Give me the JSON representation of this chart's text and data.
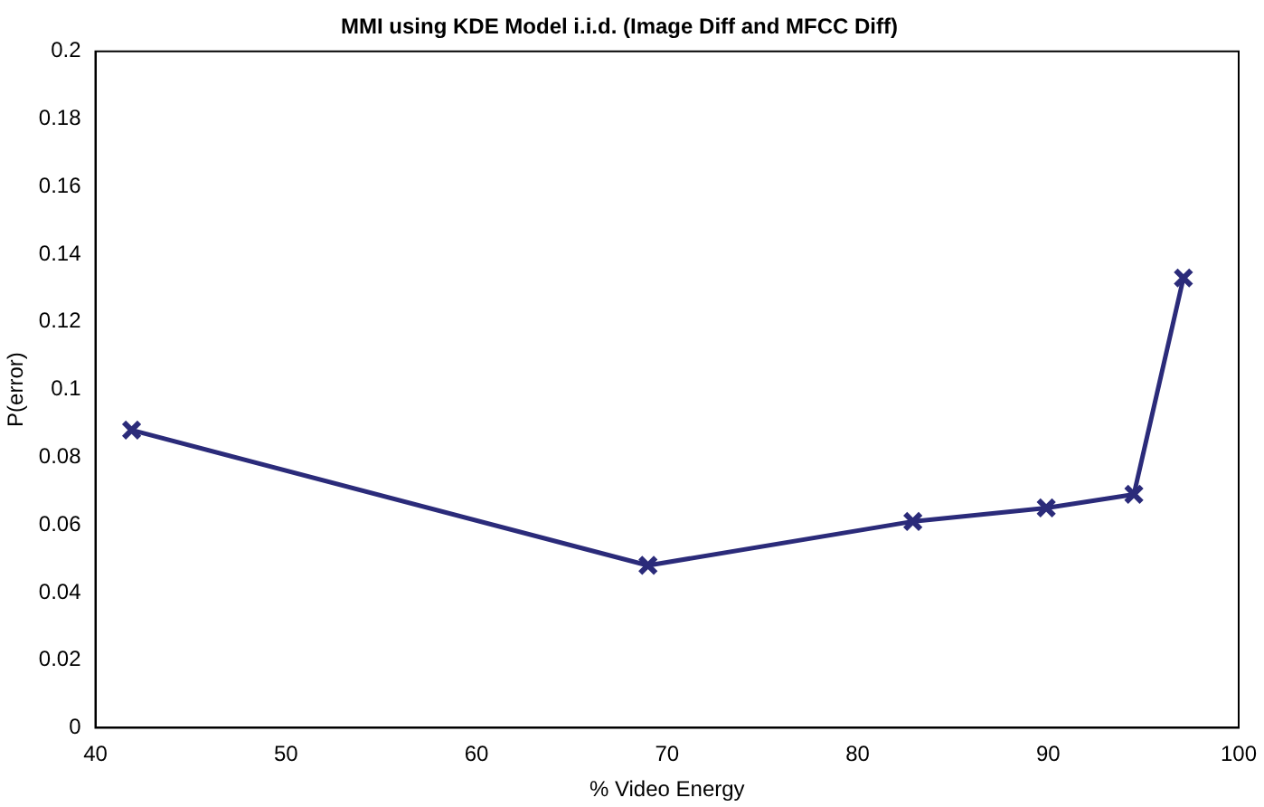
{
  "chart_data": {
    "type": "line",
    "title": "MMI using KDE Model i.i.d. (Image Diff and MFCC Diff)",
    "xlabel": "% Video Energy",
    "ylabel": "P(error)",
    "x": [
      41.9,
      69,
      82.9,
      89.9,
      94.5,
      97.1
    ],
    "series": [
      {
        "color": "#2b2b7a",
        "values": [
          0.088,
          0.048,
          0.061,
          0.065,
          0.069,
          0.133
        ]
      }
    ],
    "xlim": [
      40,
      100
    ],
    "xticks": [
      40,
      50,
      60,
      70,
      80,
      90,
      100
    ],
    "ylim": [
      0,
      0.2
    ],
    "yticks": [
      0,
      0.02,
      0.04,
      0.06,
      0.08,
      0.1,
      0.12,
      0.14,
      0.16,
      0.18,
      0.2
    ],
    "grid": false,
    "legend": false,
    "marker": "cross",
    "line_style": "solid"
  }
}
